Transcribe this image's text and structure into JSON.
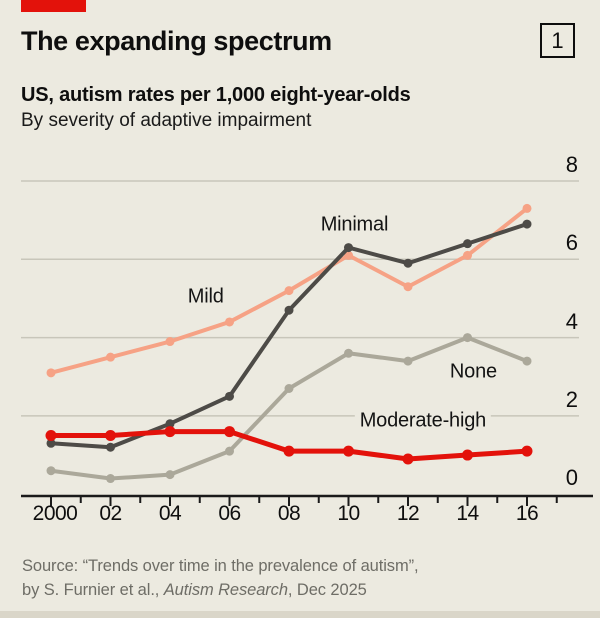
{
  "header": {
    "title": "The expanding spectrum",
    "index_label": "1",
    "subtitle_bold": "US, autism rates per 1,000 eight-year-olds",
    "subtitle_regular": "By severity of adaptive impairment"
  },
  "chart_data": {
    "type": "line",
    "x": [
      2000,
      2002,
      2004,
      2006,
      2008,
      2010,
      2012,
      2014,
      2016
    ],
    "x_tick_labels": [
      "2000",
      "02",
      "04",
      "06",
      "08",
      "10",
      "12",
      "14",
      "16"
    ],
    "y_ticks": [
      0,
      2,
      4,
      6,
      8
    ],
    "ylim": [
      0,
      8
    ],
    "grid": "horizontal",
    "legend_position": "inline-labels",
    "series": [
      {
        "name": "None",
        "color": "#ABA89A",
        "line_width": 4,
        "values": [
          0.6,
          0.4,
          0.5,
          1.1,
          2.7,
          3.6,
          3.4,
          4.0,
          3.4
        ]
      },
      {
        "name": "Mild",
        "color": "#F6A285",
        "line_width": 4,
        "values": [
          3.1,
          3.5,
          3.9,
          4.4,
          5.2,
          6.1,
          5.3,
          6.1,
          7.3
        ]
      },
      {
        "name": "Minimal",
        "color": "#4D4B47",
        "line_width": 4,
        "values": [
          1.3,
          1.2,
          1.8,
          2.5,
          4.7,
          6.3,
          5.9,
          6.4,
          6.9
        ]
      },
      {
        "name": "Moderate-high",
        "color": "#E3120B",
        "line_width": 5,
        "values": [
          1.5,
          1.5,
          1.6,
          1.6,
          1.1,
          1.1,
          0.9,
          1.0,
          1.1
        ]
      }
    ],
    "labels": [
      {
        "text": "Minimal",
        "year": 2010.2,
        "value": 6.88,
        "bg": false
      },
      {
        "text": "Mild",
        "year": 2005.2,
        "value": 5.04,
        "bg": false
      },
      {
        "text": "None",
        "year": 2014.2,
        "value": 3.13,
        "bg": false
      },
      {
        "text": "Moderate-high",
        "year": 2012.5,
        "value": 1.87,
        "bg": true
      }
    ]
  },
  "source": {
    "line1": "Source: “Trends over time in the prevalence of autism”,",
    "line2_prefix": "by S. Furnier et al., ",
    "line2_italic": "Autism Research",
    "line2_suffix": ", Dec 2025"
  },
  "colors": {
    "background": "#ECEAE0",
    "accent_red": "#E3120B",
    "grid": "#C8C6BA",
    "axis": "#1A1A1A",
    "text": "#0E0E0E",
    "muted_text": "#6E6D66",
    "footer_strip": "#DAD6C9"
  }
}
